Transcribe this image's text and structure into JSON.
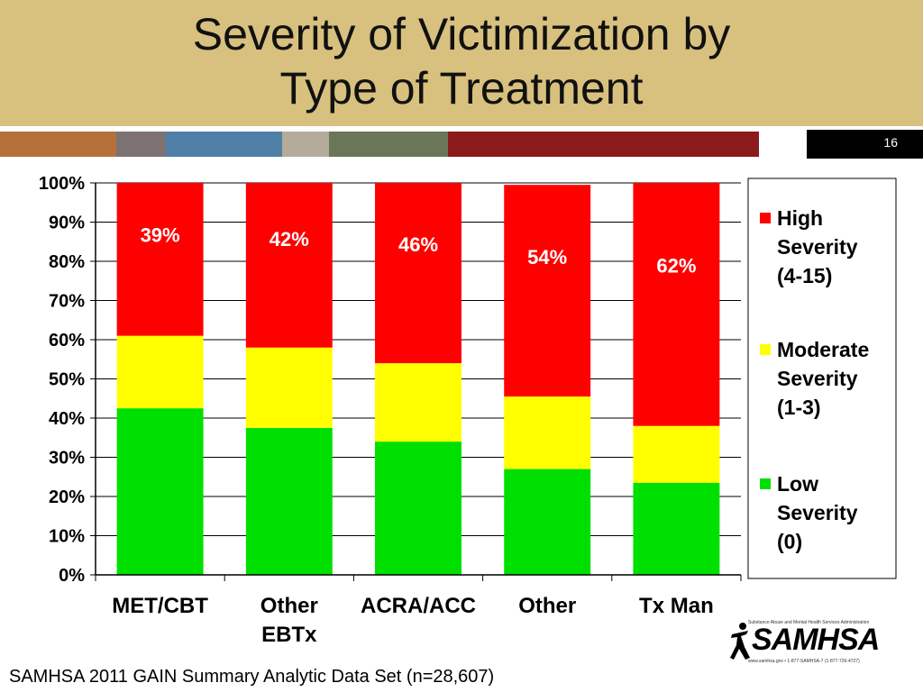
{
  "slide": {
    "title_lines": [
      "Severity of Victimization by",
      "Type of Treatment"
    ],
    "page_number": "16",
    "source": "SAMHSA 2011 GAIN Summary Analytic Data Set (n=28,607)"
  },
  "logo": {
    "text": "SAMHSA",
    "tagline": "Substance Abuse and Mental Health Services Administration",
    "contact": "www.samhsa.gov • 1-877-SAMHSA-7 (1-877-726-4727)"
  },
  "colors": {
    "header": "#d8c07e",
    "stripe": [
      "#b5703a",
      "#7d7273",
      "#4f7fa6",
      "#b4ab9b",
      "#6a7657",
      "#8b1a1a",
      "#ffffff"
    ],
    "high": "#ff0000",
    "moderate": "#ffff00",
    "low": "#00e000"
  },
  "chart_data": {
    "type": "bar",
    "stacked": true,
    "categories": [
      [
        "MET/CBT"
      ],
      [
        "Other",
        "EBTx"
      ],
      [
        "ACRA/ACC"
      ],
      [
        "Other"
      ],
      [
        "Tx Man"
      ]
    ],
    "series": [
      {
        "name": "Low Severity (0)",
        "legend_lines": [
          "Low",
          "Severity",
          "(0)"
        ],
        "color": "#00e000",
        "values": [
          42.5,
          37.5,
          34,
          27,
          23.5
        ]
      },
      {
        "name": "Moderate Severity (1-3)",
        "legend_lines": [
          "Moderate",
          "Severity",
          "(1-3)"
        ],
        "color": "#ffff00",
        "values": [
          18.5,
          20.5,
          20,
          18.5,
          14.5
        ]
      },
      {
        "name": "High Severity (4-15)",
        "legend_lines": [
          "High",
          "Severity",
          "(4-15)"
        ],
        "color": "#ff0000",
        "values": [
          39,
          42,
          46,
          54,
          62
        ]
      }
    ],
    "data_labels": [
      "39%",
      "42%",
      "46%",
      "54%",
      "62%"
    ],
    "y_ticks": [
      "0%",
      "10%",
      "20%",
      "30%",
      "40%",
      "50%",
      "60%",
      "70%",
      "80%",
      "90%",
      "100%"
    ],
    "ylim": [
      0,
      100
    ],
    "grid": true,
    "legend_position": "right"
  }
}
